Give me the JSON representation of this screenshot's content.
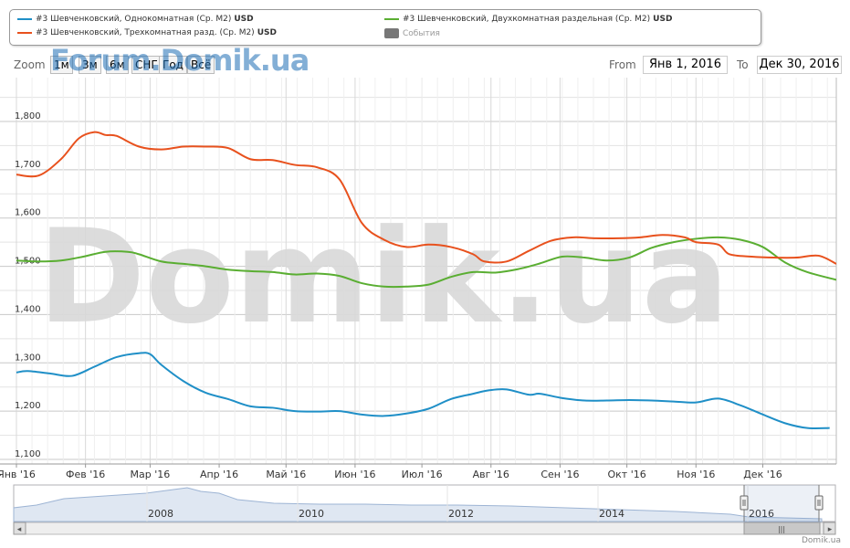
{
  "legend": [
    {
      "label": "#3 Шевченковский, Однокомнатная (Ср. M2)",
      "unit": "USD",
      "color": "#1f8fc7"
    },
    {
      "label": "#3 Шевченковский, Двухкомнатная раздельная (Ср. M2)",
      "unit": "USD",
      "color": "#5aae32"
    },
    {
      "label": "#3 Шевченковский, Трехкомнатная разд. (Ср. M2)",
      "unit": "USD",
      "color": "#e8511d"
    },
    {
      "label": "События",
      "unit": "",
      "color": "#777777"
    }
  ],
  "zoom": {
    "label": "Zoom",
    "buttons": [
      "1м",
      "3м",
      "6м",
      "СНГ",
      "Год",
      "Всё"
    ]
  },
  "watermark_top": "Forum.Domik.ua",
  "watermark_big": "Domik.ua",
  "range": {
    "from_label": "From",
    "from_value": "Янв 1, 2016",
    "to_label": "To",
    "to_value": "Дек 30, 2016"
  },
  "event_dot_colors": [
    "#7ea7d6",
    "#d6dc7e",
    "#d67e9a"
  ],
  "navigator": {
    "years": [
      "2008",
      "2010",
      "2012",
      "2014",
      "2016"
    ],
    "left_arrow": "◂",
    "right_arrow": "▸",
    "grip": "|||"
  },
  "credit": "Domik.ua",
  "chart_data": {
    "type": "line",
    "xlabel": "",
    "ylabel": "",
    "ylim": [
      1100,
      1800
    ],
    "yticks": [
      "1,100",
      "1,200",
      "1,300",
      "1,400",
      "1,500",
      "1,600",
      "1,700",
      "1,800"
    ],
    "x_tick_labels": [
      "Янв '16",
      "Фев '16",
      "Мар '16",
      "Апр '16",
      "Май '16",
      "Июн '16",
      "Июл '16",
      "Авг '16",
      "Сен '16",
      "Окт '16",
      "Ноя '16",
      "Дек '16"
    ],
    "x_domain_days": [
      0,
      368
    ],
    "grid": true,
    "series": [
      {
        "name": "#3 Шевченковский, Однокомнатная (Ср. M2)",
        "color": "#1f8fc7",
        "x": [
          0,
          5,
          15,
          25,
          35,
          45,
          55,
          60,
          65,
          75,
          85,
          95,
          105,
          115,
          125,
          135,
          145,
          155,
          165,
          175,
          185,
          195,
          205,
          212,
          220,
          230,
          235,
          245,
          255,
          265,
          275,
          285,
          295,
          305,
          315,
          325,
          335,
          345,
          355,
          365
        ],
        "y": [
          1280,
          1283,
          1278,
          1273,
          1292,
          1312,
          1320,
          1318,
          1296,
          1262,
          1238,
          1225,
          1210,
          1207,
          1200,
          1199,
          1200,
          1193,
          1190,
          1195,
          1205,
          1225,
          1236,
          1243,
          1245,
          1234,
          1236,
          1227,
          1222,
          1222,
          1223,
          1222,
          1220,
          1218,
          1226,
          1212,
          1193,
          1175,
          1165,
          1165
        ]
      },
      {
        "name": "#3 Шевченковский, Двухкомнатная раздельная (Ср. M2)",
        "color": "#5aae32",
        "x": [
          0,
          10,
          20,
          30,
          40,
          50,
          55,
          65,
          75,
          85,
          95,
          105,
          115,
          125,
          135,
          145,
          155,
          165,
          175,
          185,
          195,
          205,
          215,
          225,
          235,
          245,
          255,
          265,
          275,
          285,
          295,
          305,
          315,
          325,
          335,
          345,
          355,
          368
        ],
        "y": [
          1512,
          1510,
          1512,
          1520,
          1530,
          1530,
          1525,
          1510,
          1505,
          1500,
          1493,
          1490,
          1488,
          1483,
          1485,
          1480,
          1465,
          1458,
          1458,
          1462,
          1478,
          1488,
          1487,
          1494,
          1506,
          1520,
          1518,
          1512,
          1518,
          1538,
          1550,
          1557,
          1560,
          1555,
          1540,
          1508,
          1488,
          1472
        ]
      },
      {
        "name": "#3 Шевченковский, Трехкомнатная разд. (Ср. M2)",
        "color": "#e8511d",
        "x": [
          0,
          10,
          20,
          28,
          35,
          40,
          45,
          55,
          65,
          75,
          85,
          95,
          105,
          115,
          125,
          135,
          145,
          155,
          165,
          175,
          185,
          195,
          205,
          210,
          220,
          230,
          240,
          250,
          260,
          270,
          280,
          290,
          300,
          305,
          315,
          320,
          330,
          340,
          350,
          360,
          368
        ],
        "y": [
          1690,
          1688,
          1722,
          1765,
          1778,
          1772,
          1770,
          1748,
          1742,
          1748,
          1748,
          1745,
          1722,
          1720,
          1710,
          1705,
          1680,
          1590,
          1555,
          1540,
          1545,
          1540,
          1525,
          1510,
          1510,
          1532,
          1553,
          1560,
          1558,
          1558,
          1560,
          1565,
          1560,
          1550,
          1545,
          1525,
          1520,
          1518,
          1518,
          1522,
          1505
        ]
      }
    ]
  }
}
